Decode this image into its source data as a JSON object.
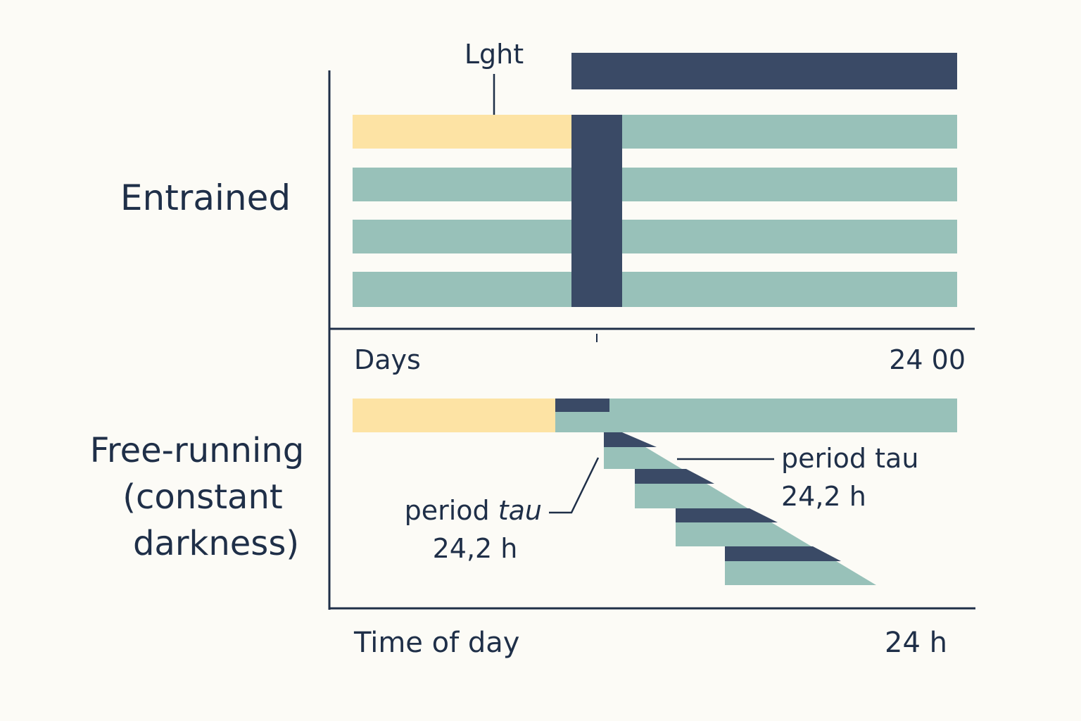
{
  "colors": {
    "background": "#fcfbf6",
    "light": "#fde3a4",
    "rest": "#98c1b9",
    "activity": "#3a4a66",
    "axis": "#1f2f48",
    "text": "#1f2f48"
  },
  "entrained": {
    "label": "Entrained",
    "light_label": "Lght"
  },
  "free_running": {
    "label_line1": "Free-running",
    "label_line2": "(constant",
    "label_line3": "darkness)"
  },
  "axis_labels": {
    "days": "Days",
    "days_end": "24 00",
    "time_of_day": "Time of day",
    "time_end": "24 h"
  },
  "annotations": {
    "period_left": {
      "prefix": "period ",
      "symbol": "tau",
      "value": "24,2 h"
    },
    "period_right": {
      "text": "period tau",
      "value": "24,2 h"
    }
  }
}
